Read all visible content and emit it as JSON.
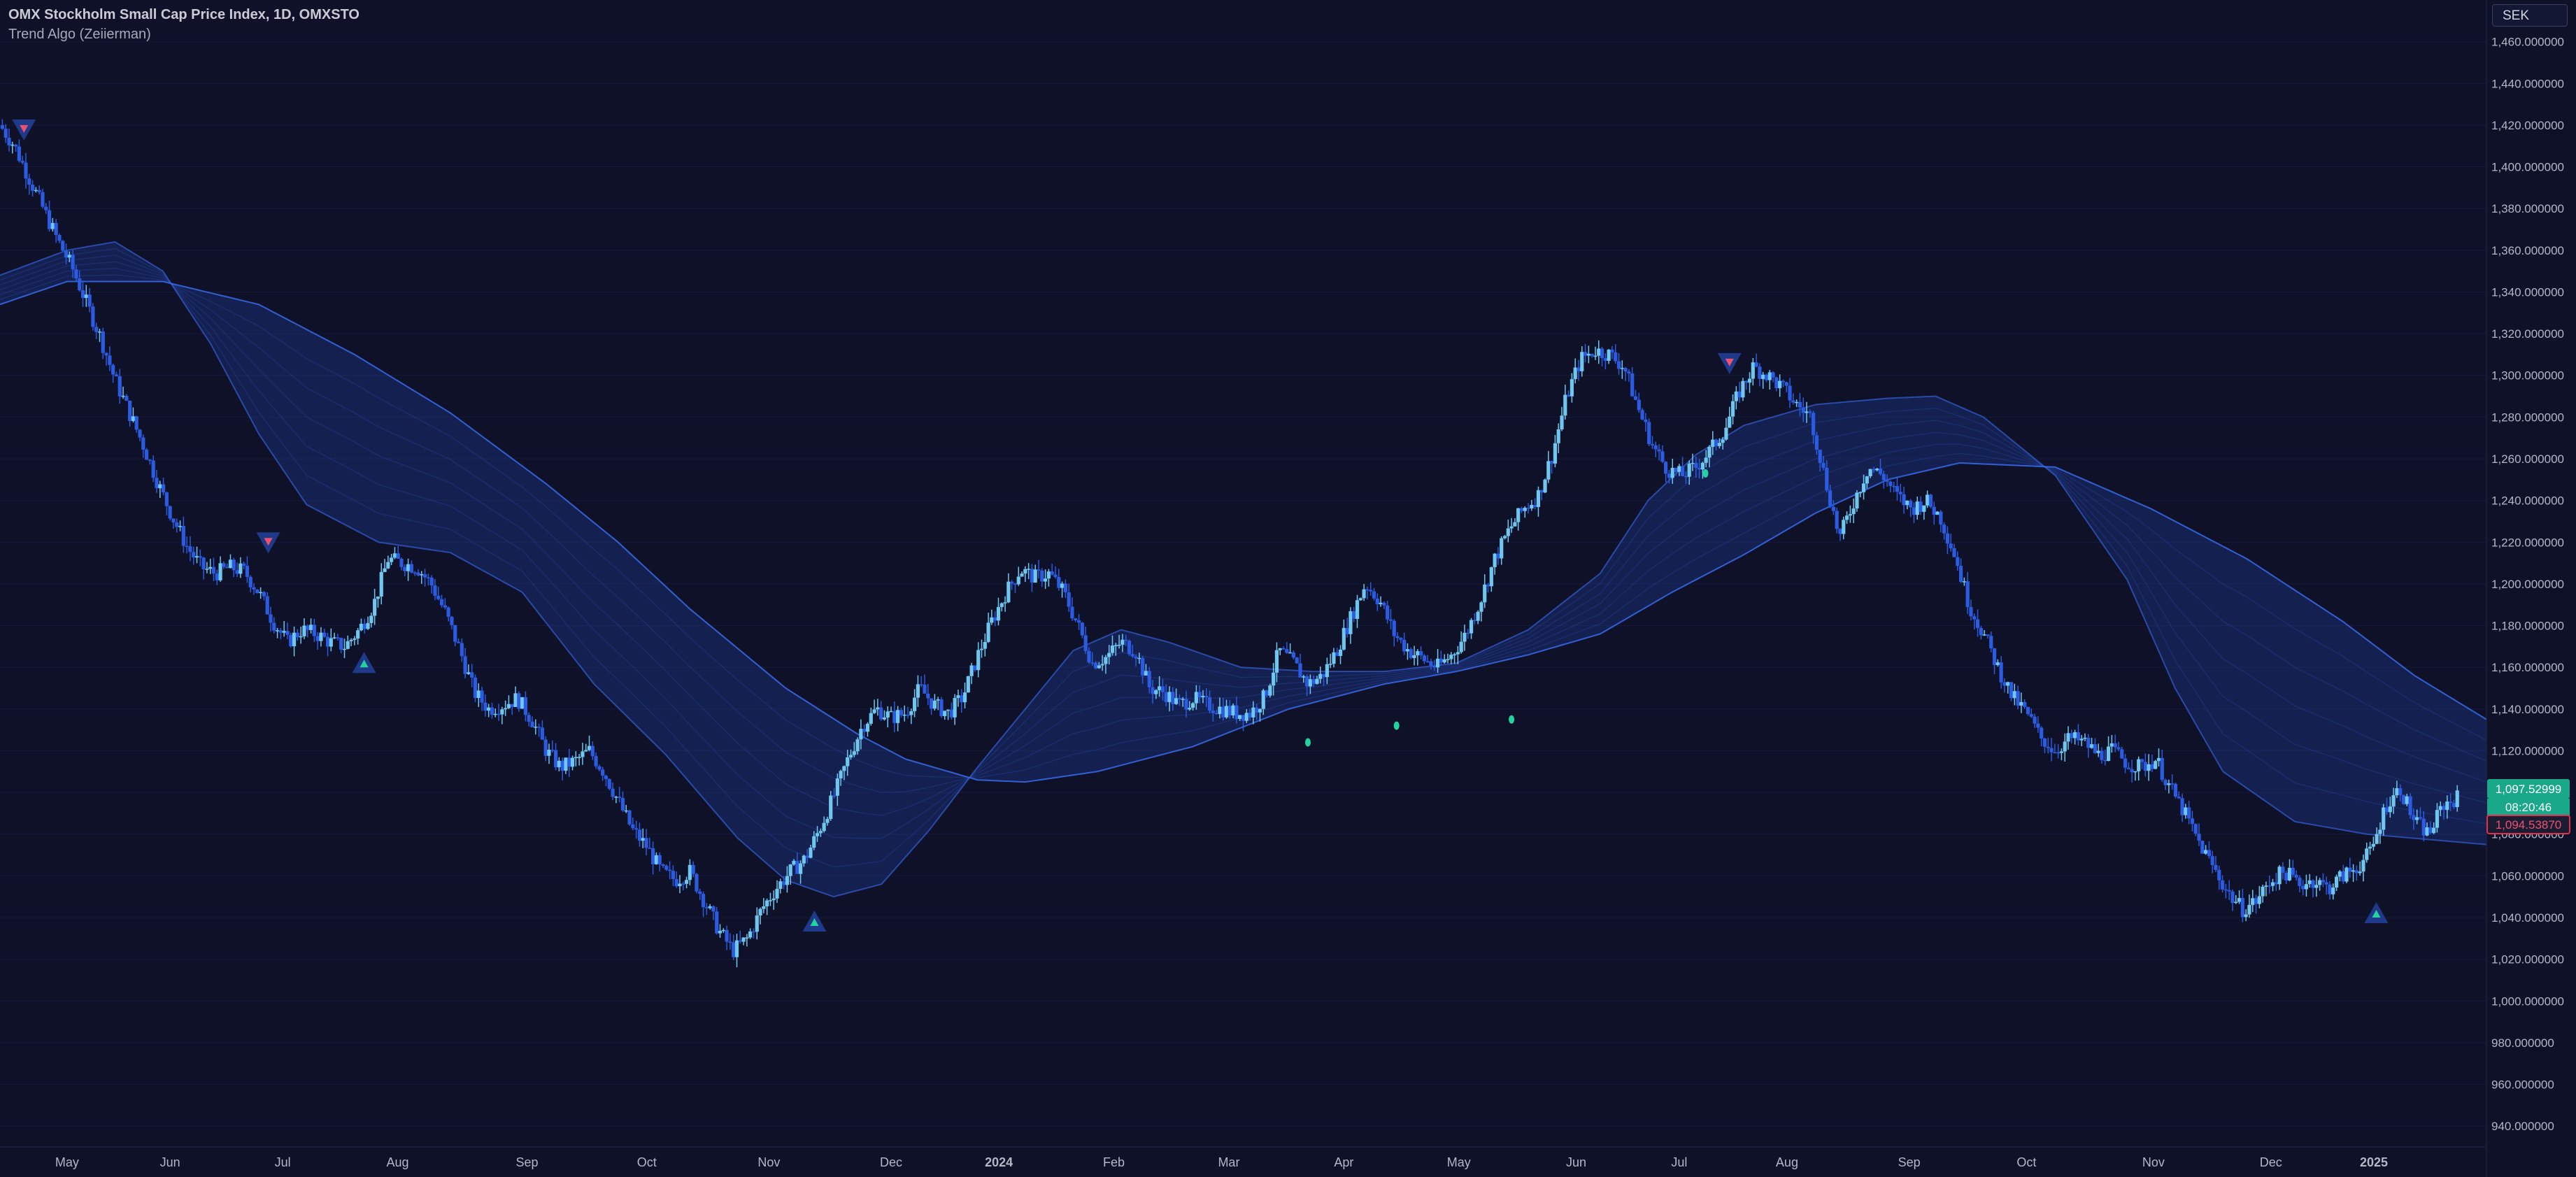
{
  "header": {
    "symbol_title": "OMX Stockholm Small Cap Price Index, 1D, OMXSTO",
    "indicator": "Trend Algo (Zeiierman)"
  },
  "currency_button": "SEK",
  "colors": {
    "background": "#0f1129",
    "candle_light": "#6fc6ee",
    "candle_dark": "#2b5be0",
    "ribbon": "#2b56d9",
    "ribbon_line": "#3a6cf0",
    "signal_up": "#22d3a0",
    "signal_down": "#f0506e",
    "signal_badge": "#1f3a8a",
    "price_label_green": "#1aa88a",
    "price_label_red": "#e0304a"
  },
  "price_labels": {
    "last_price": "1,097.52999",
    "countdown": "08:20:46",
    "level": "1,094.53870"
  },
  "chart_data": {
    "type": "candlestick",
    "title": "OMX Stockholm Small Cap Price Index, 1D, OMXSTO",
    "ylim": [
      930,
      1480
    ],
    "y_ticks": [
      "1,460.000000",
      "1,440.000000",
      "1,420.000000",
      "1,400.000000",
      "1,380.000000",
      "1,360.000000",
      "1,340.000000",
      "1,320.000000",
      "1,300.000000",
      "1,280.000000",
      "1,260.000000",
      "1,240.000000",
      "1,220.000000",
      "1,200.000000",
      "1,180.000000",
      "1,160.000000",
      "1,140.000000",
      "1,120.000000",
      "1,100.000000",
      "1,080.000000",
      "1,060.000000",
      "1,040.000000",
      "1,020.000000",
      "1,000.000000",
      "980.000000",
      "960.000000",
      "940.000000"
    ],
    "x_ticks": [
      "May",
      "Jun",
      "Jul",
      "Aug",
      "Sep",
      "Oct",
      "Nov",
      "Dec",
      "2024",
      "Feb",
      "Mar",
      "Apr",
      "May",
      "Jun",
      "Jul",
      "Aug",
      "Sep",
      "Oct",
      "Nov",
      "Dec",
      "2025"
    ],
    "x_tick_days": [
      0,
      43,
      90,
      138,
      192,
      242,
      293,
      344,
      389,
      437,
      485,
      533,
      581,
      630,
      673,
      718,
      769,
      818,
      871,
      920,
      963
    ],
    "x_range_days": [
      -28,
      1010
    ],
    "price_path": [
      [
        -28,
        1420
      ],
      [
        -22,
        1410
      ],
      [
        -16,
        1395
      ],
      [
        -10,
        1380
      ],
      [
        -4,
        1365
      ],
      [
        2,
        1352
      ],
      [
        8,
        1335
      ],
      [
        14,
        1318
      ],
      [
        20,
        1298
      ],
      [
        26,
        1282
      ],
      [
        32,
        1266
      ],
      [
        38,
        1248
      ],
      [
        44,
        1232
      ],
      [
        50,
        1218
      ],
      [
        56,
        1208
      ],
      [
        62,
        1205
      ],
      [
        68,
        1208
      ],
      [
        74,
        1206
      ],
      [
        80,
        1196
      ],
      [
        86,
        1182
      ],
      [
        92,
        1172
      ],
      [
        98,
        1178
      ],
      [
        104,
        1176
      ],
      [
        110,
        1172
      ],
      [
        116,
        1170
      ],
      [
        122,
        1178
      ],
      [
        128,
        1190
      ],
      [
        134,
        1212
      ],
      [
        140,
        1210
      ],
      [
        146,
        1208
      ],
      [
        152,
        1200
      ],
      [
        158,
        1186
      ],
      [
        164,
        1168
      ],
      [
        170,
        1148
      ],
      [
        176,
        1140
      ],
      [
        182,
        1142
      ],
      [
        188,
        1145
      ],
      [
        194,
        1135
      ],
      [
        200,
        1120
      ],
      [
        206,
        1112
      ],
      [
        212,
        1115
      ],
      [
        218,
        1120
      ],
      [
        224,
        1110
      ],
      [
        230,
        1096
      ],
      [
        236,
        1082
      ],
      [
        242,
        1074
      ],
      [
        248,
        1062
      ],
      [
        254,
        1058
      ],
      [
        260,
        1062
      ],
      [
        266,
        1048
      ],
      [
        272,
        1034
      ],
      [
        278,
        1024
      ],
      [
        284,
        1030
      ],
      [
        290,
        1044
      ],
      [
        296,
        1054
      ],
      [
        302,
        1062
      ],
      [
        308,
        1068
      ],
      [
        314,
        1082
      ],
      [
        320,
        1098
      ],
      [
        326,
        1116
      ],
      [
        332,
        1132
      ],
      [
        338,
        1140
      ],
      [
        344,
        1136
      ],
      [
        350,
        1138
      ],
      [
        356,
        1150
      ],
      [
        362,
        1142
      ],
      [
        368,
        1138
      ],
      [
        374,
        1146
      ],
      [
        380,
        1165
      ],
      [
        386,
        1182
      ],
      [
        392,
        1196
      ],
      [
        398,
        1207
      ],
      [
        404,
        1203
      ],
      [
        410,
        1205
      ],
      [
        416,
        1196
      ],
      [
        422,
        1180
      ],
      [
        428,
        1162
      ],
      [
        434,
        1165
      ],
      [
        440,
        1172
      ],
      [
        446,
        1168
      ],
      [
        452,
        1150
      ],
      [
        458,
        1148
      ],
      [
        464,
        1142
      ],
      [
        470,
        1145
      ],
      [
        476,
        1142
      ],
      [
        482,
        1140
      ],
      [
        488,
        1138
      ],
      [
        494,
        1138
      ],
      [
        500,
        1146
      ],
      [
        506,
        1168
      ],
      [
        512,
        1162
      ],
      [
        518,
        1152
      ],
      [
        524,
        1156
      ],
      [
        530,
        1168
      ],
      [
        536,
        1184
      ],
      [
        542,
        1200
      ],
      [
        548,
        1192
      ],
      [
        554,
        1176
      ],
      [
        560,
        1168
      ],
      [
        566,
        1164
      ],
      [
        572,
        1160
      ],
      [
        578,
        1166
      ],
      [
        584,
        1176
      ],
      [
        590,
        1192
      ],
      [
        596,
        1212
      ],
      [
        602,
        1226
      ],
      [
        608,
        1236
      ],
      [
        614,
        1242
      ],
      [
        620,
        1262
      ],
      [
        626,
        1290
      ],
      [
        632,
        1308
      ],
      [
        638,
        1312
      ],
      [
        644,
        1310
      ],
      [
        650,
        1304
      ],
      [
        656,
        1284
      ],
      [
        662,
        1266
      ],
      [
        668,
        1255
      ],
      [
        674,
        1252
      ],
      [
        680,
        1256
      ],
      [
        686,
        1264
      ],
      [
        692,
        1274
      ],
      [
        698,
        1292
      ],
      [
        704,
        1304
      ],
      [
        710,
        1300
      ],
      [
        716,
        1294
      ],
      [
        722,
        1286
      ],
      [
        728,
        1280
      ],
      [
        734,
        1250
      ],
      [
        740,
        1222
      ],
      [
        746,
        1240
      ],
      [
        752,
        1256
      ],
      [
        758,
        1252
      ],
      [
        764,
        1242
      ],
      [
        770,
        1236
      ],
      [
        776,
        1240
      ],
      [
        782,
        1232
      ],
      [
        788,
        1214
      ],
      [
        794,
        1190
      ],
      [
        800,
        1176
      ],
      [
        806,
        1160
      ],
      [
        812,
        1146
      ],
      [
        818,
        1138
      ],
      [
        824,
        1126
      ],
      [
        830,
        1120
      ],
      [
        836,
        1126
      ],
      [
        842,
        1124
      ],
      [
        848,
        1118
      ],
      [
        854,
        1120
      ],
      [
        860,
        1114
      ],
      [
        866,
        1112
      ],
      [
        872,
        1116
      ],
      [
        878,
        1102
      ],
      [
        884,
        1090
      ],
      [
        890,
        1076
      ],
      [
        896,
        1064
      ],
      [
        902,
        1052
      ],
      [
        908,
        1044
      ],
      [
        914,
        1048
      ],
      [
        920,
        1058
      ],
      [
        926,
        1062
      ],
      [
        932,
        1056
      ],
      [
        938,
        1058
      ],
      [
        944,
        1054
      ],
      [
        950,
        1060
      ],
      [
        956,
        1064
      ],
      [
        962,
        1072
      ],
      [
        968,
        1094
      ],
      [
        974,
        1102
      ],
      [
        980,
        1086
      ],
      [
        986,
        1080
      ],
      [
        992,
        1094
      ],
      [
        998,
        1097.5
      ]
    ],
    "ribbon_line_a": [
      [
        -28,
        1334
      ],
      [
        0,
        1345
      ],
      [
        40,
        1345
      ],
      [
        80,
        1334
      ],
      [
        120,
        1310
      ],
      [
        160,
        1282
      ],
      [
        200,
        1248
      ],
      [
        230,
        1220
      ],
      [
        260,
        1188
      ],
      [
        300,
        1150
      ],
      [
        330,
        1128
      ],
      [
        350,
        1116
      ],
      [
        380,
        1106
      ],
      [
        400,
        1105
      ],
      [
        430,
        1110
      ],
      [
        470,
        1122
      ],
      [
        510,
        1140
      ],
      [
        550,
        1152
      ],
      [
        580,
        1158
      ],
      [
        610,
        1166
      ],
      [
        640,
        1176
      ],
      [
        670,
        1196
      ],
      [
        700,
        1214
      ],
      [
        730,
        1234
      ],
      [
        760,
        1250
      ],
      [
        790,
        1258
      ],
      [
        830,
        1256
      ],
      [
        870,
        1236
      ],
      [
        910,
        1212
      ],
      [
        950,
        1182
      ],
      [
        980,
        1156
      ],
      [
        1010,
        1135
      ]
    ],
    "ribbon_line_b": [
      [
        -28,
        1348
      ],
      [
        0,
        1360
      ],
      [
        20,
        1364
      ],
      [
        40,
        1350
      ],
      [
        60,
        1315
      ],
      [
        80,
        1272
      ],
      [
        100,
        1238
      ],
      [
        130,
        1220
      ],
      [
        160,
        1215
      ],
      [
        190,
        1196
      ],
      [
        220,
        1152
      ],
      [
        250,
        1118
      ],
      [
        280,
        1078
      ],
      [
        300,
        1058
      ],
      [
        320,
        1050
      ],
      [
        340,
        1056
      ],
      [
        360,
        1082
      ],
      [
        380,
        1112
      ],
      [
        400,
        1140
      ],
      [
        420,
        1168
      ],
      [
        440,
        1178
      ],
      [
        460,
        1172
      ],
      [
        490,
        1160
      ],
      [
        520,
        1158
      ],
      [
        550,
        1158
      ],
      [
        580,
        1162
      ],
      [
        610,
        1178
      ],
      [
        640,
        1205
      ],
      [
        660,
        1240
      ],
      [
        680,
        1262
      ],
      [
        700,
        1276
      ],
      [
        730,
        1286
      ],
      [
        760,
        1289
      ],
      [
        780,
        1290
      ],
      [
        800,
        1280
      ],
      [
        830,
        1252
      ],
      [
        860,
        1202
      ],
      [
        880,
        1150
      ],
      [
        900,
        1110
      ],
      [
        930,
        1086
      ],
      [
        960,
        1080
      ],
      [
        1010,
        1075
      ]
    ],
    "signals_down": [
      [
        -18,
        1418
      ],
      [
        84,
        1220
      ],
      [
        694,
        1306
      ]
    ],
    "signals_up": [
      [
        124,
        1162
      ],
      [
        312,
        1038
      ],
      [
        964,
        1042
      ]
    ],
    "small_up_markers": [
      [
        518,
        1124
      ],
      [
        555,
        1132
      ],
      [
        603,
        1135
      ],
      [
        684,
        1253
      ]
    ]
  }
}
